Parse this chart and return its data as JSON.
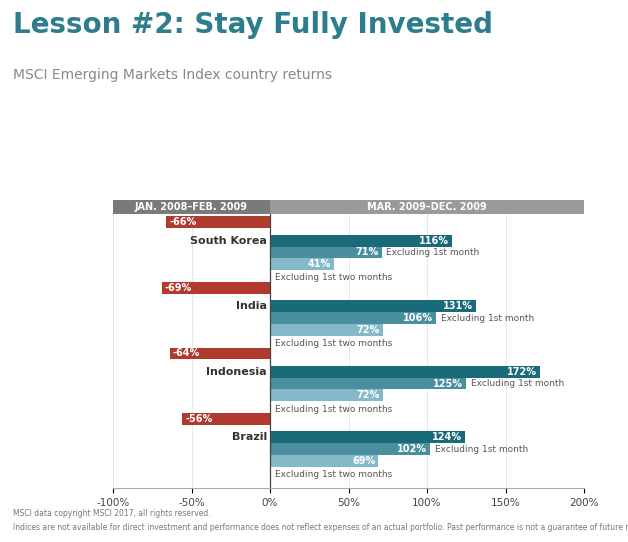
{
  "title": "Lesson #2: Stay Fully Invested",
  "subtitle": "MSCI Emerging Markets Index country returns",
  "title_color": "#2e7d8c",
  "subtitle_color": "#888888",
  "header_left": "JAN. 2008–FEB. 2009",
  "header_right": "MAR. 2009–DEC. 2009",
  "header_bg_left": "#7a7a7a",
  "header_bg_right": "#9a9a9a",
  "header_text_color": "#ffffff",
  "background_color": "#ffffff",
  "countries": [
    "South Korea",
    "India",
    "Indonesia",
    "Brazil"
  ],
  "downturn": [
    -66,
    -69,
    -64,
    -56
  ],
  "full_recovery": [
    116,
    131,
    172,
    124
  ],
  "excl_1st_month": [
    71,
    106,
    125,
    102
  ],
  "excl_2_months": [
    41,
    72,
    72,
    69
  ],
  "downturn_color": "#b03a2e",
  "full_color": "#1a6b7a",
  "excl1_color": "#4a8fa0",
  "excl2_color": "#85b8c8",
  "text_dark": "#333333",
  "text_label": "#555555",
  "xlim_min": -100,
  "xlim_max": 200,
  "xticks": [
    -100,
    -50,
    0,
    50,
    100,
    150,
    200
  ],
  "xtick_labels": [
    "-100%",
    "-50%",
    "0%",
    "50%",
    "100%",
    "150%",
    "200%"
  ],
  "footnote1": "MSCI data copyright MSCI 2017, all rights reserved.",
  "footnote2": "Indices are not available for direct investment and performance does not reflect expenses of an actual portfolio. Past performance is not a guarantee of future results."
}
